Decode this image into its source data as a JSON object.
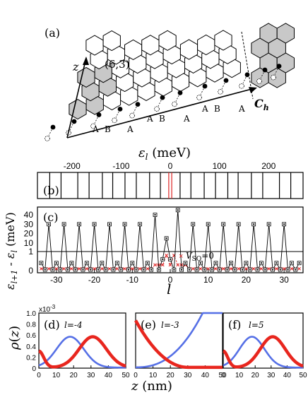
{
  "panel_a": {
    "label": "(a)",
    "chirality": "(6,3)",
    "z_axis": "z",
    "ch_label": "C",
    "ch_sub": "h",
    "site_labels": [
      "A",
      "B",
      "A",
      "A",
      "B",
      "A",
      "A",
      "B",
      "A"
    ]
  },
  "panel_b": {
    "label": "(b)",
    "xlabel": "ε",
    "xlabel_sub": "l",
    "xlabel_unit": " (meV)",
    "ticks": [
      "-200",
      "-100",
      "0",
      "100",
      "200"
    ],
    "line_positions_meV": [
      -245,
      -222,
      -188,
      -165,
      -138,
      -117,
      -92,
      -69,
      -42,
      -20,
      -3,
      3,
      20,
      42,
      69,
      92,
      117,
      138,
      165,
      188,
      222,
      245
    ],
    "red_positions_meV": [
      -3,
      3
    ]
  },
  "panel_c": {
    "label": "(c)",
    "ylabel": "ε",
    "ylabel_sub1": "l+1",
    "ylabel_mid": " - ε",
    "ylabel_sub2": "l",
    "ylabel_unit": " (meV)",
    "xlabel": "l",
    "upper_ticks": [
      "40",
      "30",
      "20",
      "10"
    ],
    "lower_ticks": [
      "1",
      "0"
    ],
    "x_ticks": [
      "-30",
      "-20",
      "-10",
      "0",
      "10",
      "20",
      "30"
    ],
    "legend_label": "V",
    "legend_sub": "SO",
    "legend_suffix": "=0",
    "chart_data": {
      "type": "line",
      "series": [
        {
          "l": [
            -34,
            -33,
            -32,
            -31,
            -30,
            -29,
            -28,
            -27,
            -26,
            -25,
            -24,
            -23,
            -22,
            -21,
            -20,
            -19,
            -18,
            -17,
            -16,
            -15,
            -14,
            -13,
            -12,
            -11,
            -10,
            -9,
            -8,
            -7,
            -6,
            -5,
            -4,
            -3,
            -2,
            -1,
            0,
            1,
            2,
            3,
            4,
            5,
            6,
            7,
            8,
            9,
            10,
            11,
            12,
            13,
            14,
            15,
            16,
            17,
            18,
            19,
            20,
            21,
            22,
            23,
            24,
            25,
            26,
            27,
            28,
            29,
            30,
            31,
            32,
            33,
            34
          ],
          "values": [
            0.4,
            0.05,
            30,
            0.05,
            0.4,
            0.05,
            30,
            0.05,
            0.4,
            0.05,
            30,
            0.05,
            0.4,
            0.05,
            30,
            0.05,
            0.4,
            0.05,
            30,
            0.05,
            0.4,
            0.05,
            30,
            0.05,
            0.4,
            0.05,
            30,
            0.05,
            0.4,
            0.05,
            40,
            0.05,
            0.6,
            15,
            0.6,
            0.05,
            45,
            0.05,
            0.4,
            0.05,
            30,
            0.05,
            0.4,
            0.05,
            30,
            0.05,
            0.4,
            0.05,
            30,
            0.05,
            0.4,
            0.05,
            30,
            0.05,
            0.4,
            0.05,
            30,
            0.05,
            0.4,
            0.05,
            30,
            0.05,
            0.4,
            0.05,
            30,
            0.05,
            0.4,
            0.05,
            0.4
          ]
        }
      ]
    }
  },
  "panel_def": {
    "ylabel": "ρ(z)",
    "xlabel": "z (nm)",
    "exponent": "x10",
    "exponent_power": "-3",
    "y_ticks": [
      "1.0",
      "0.8",
      "0.6",
      "0.4",
      "0.2",
      "0"
    ],
    "x_ticks": [
      "0",
      "10",
      "20",
      "30",
      "40",
      "50"
    ],
    "panels": [
      {
        "label": "(d)",
        "l_label": "l=-4"
      },
      {
        "label": "(e)",
        "l_label": "l=-3"
      },
      {
        "label": "(f)",
        "l_label": "l=5"
      }
    ]
  }
}
